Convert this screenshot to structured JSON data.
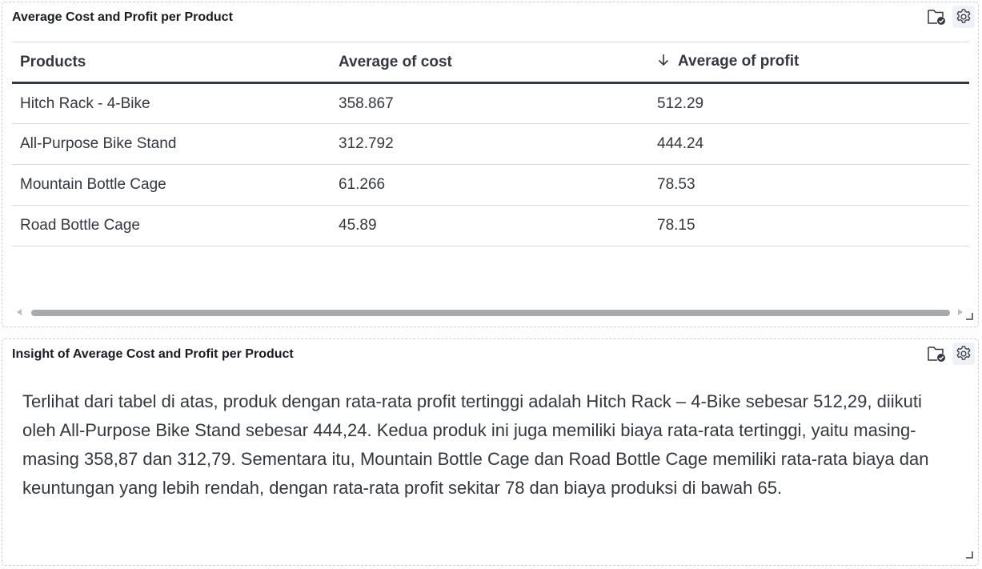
{
  "table_panel": {
    "title": "Average Cost and Profit per Product",
    "columns": [
      "Products",
      "Average of cost",
      "Average of profit"
    ],
    "sorted_column": "Average of profit",
    "sort_direction": "descending",
    "rows": [
      [
        "Hitch Rack - 4-Bike",
        "358.867",
        "512.29"
      ],
      [
        "All-Purpose Bike Stand",
        "312.792",
        "444.24"
      ],
      [
        "Mountain Bottle Cage",
        "61.266",
        "78.53"
      ],
      [
        "Road Bottle Cage",
        "45.89",
        "78.15"
      ]
    ]
  },
  "insight_panel": {
    "title": "Insight of Average Cost and Profit per Product",
    "text": "Terlihat dari tabel di atas, produk dengan rata-rata profit tertinggi adalah Hitch Rack – 4-Bike sebesar 512,29, diikuti oleh All-Purpose Bike Stand sebesar 444,24. Kedua produk ini juga memiliki biaya rata-rata tertinggi, yaitu masing-masing 358,87 dan 312,79. Sementara itu, Mountain Bottle Cage dan Road Bottle Cage memiliki rata-rata biaya dan keuntungan yang lebih rendah, dengan rata-rata profit sekitar 78 dan biaya produksi di bawah 65."
  },
  "icons": {
    "panel_status": "folder-check-icon",
    "panel_settings": "gear-icon",
    "sort": "arrow-down-icon"
  },
  "colors": {
    "text": "#343741",
    "border": "#d3dae6",
    "header_rule": "#343741",
    "settings_bg": "#eef1f6"
  }
}
